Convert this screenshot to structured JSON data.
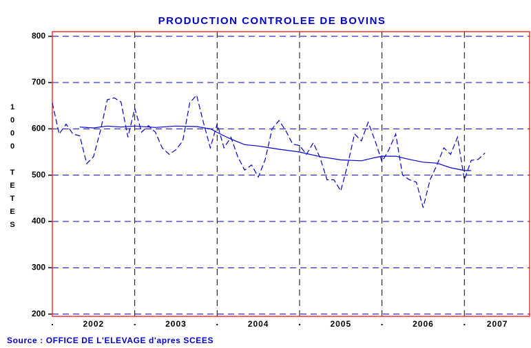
{
  "chart_data": {
    "type": "line",
    "title": "PRODUCTION CONTROLEE DE BOVINS",
    "y_label": "1000 TETES",
    "source": "Source : OFFICE DE L'ELEVAGE d'apres SCEES",
    "xlim": [
      2002,
      2007.8
    ],
    "xticks": [
      2002,
      2003,
      2004,
      2005,
      2006,
      2007
    ],
    "x_labels": [
      {
        "value": 2002.5,
        "label": "2002"
      },
      {
        "value": 2003.5,
        "label": "2003"
      },
      {
        "value": 2004.5,
        "label": "2004"
      },
      {
        "value": 2005.5,
        "label": "2005"
      },
      {
        "value": 2006.5,
        "label": "2006"
      },
      {
        "value": 2007.4,
        "label": "2007"
      }
    ],
    "ylim": [
      195,
      810
    ],
    "yticks": [
      200,
      300,
      400,
      500,
      600,
      700,
      800
    ],
    "grid": true,
    "series": [
      {
        "color": "#0000cc",
        "dashed": true,
        "x": [
          2002,
          2002.083,
          2002.167,
          2002.25,
          2002.333,
          2002.417,
          2002.5,
          2002.583,
          2002.667,
          2002.75,
          2002.833,
          2002.917,
          2003,
          2003.083,
          2003.167,
          2003.25,
          2003.333,
          2003.417,
          2003.5,
          2003.583,
          2003.667,
          2003.75,
          2003.833,
          2003.917,
          2004,
          2004.083,
          2004.167,
          2004.25,
          2004.333,
          2004.417,
          2004.5,
          2004.583,
          2004.667,
          2004.75,
          2004.833,
          2004.917,
          2005,
          2005.083,
          2005.167,
          2005.25,
          2005.333,
          2005.417,
          2005.5,
          2005.583,
          2005.667,
          2005.75,
          2005.833,
          2005.917,
          2006,
          2006.083,
          2006.167,
          2006.25,
          2006.333,
          2006.417,
          2006.5,
          2006.583,
          2006.667,
          2006.75,
          2006.833,
          2006.917,
          2007,
          2007.083,
          2007.167,
          2007.25
        ],
        "values": [
          656,
          589,
          610,
          589,
          585,
          525,
          540,
          596,
          663,
          667,
          658,
          582,
          644,
          593,
          607,
          593,
          559,
          545,
          555,
          574,
          656,
          673,
          614,
          559,
          611,
          559,
          582,
          540,
          511,
          522,
          496,
          534,
          600,
          618,
          596,
          567,
          564,
          545,
          570,
          537,
          490,
          490,
          466,
          522,
          589,
          574,
          614,
          574,
          529,
          555,
          589,
          500,
          490,
          485,
          430,
          490,
          522,
          559,
          545,
          582,
          490,
          532,
          534,
          548
        ]
      },
      {
        "color": "#0000cc",
        "dashed": false,
        "x": [
          2002.333,
          2002.5,
          2002.667,
          2002.833,
          2003,
          2003.25,
          2003.5,
          2003.75,
          2003.917,
          2004.083,
          2004.167,
          2004.333,
          2004.5,
          2004.75,
          2005,
          2005.25,
          2005.5,
          2005.75,
          2005.917,
          2006,
          2006.167,
          2006.333,
          2006.5,
          2006.667,
          2006.833,
          2007,
          2007.083
        ],
        "values": [
          604,
          602,
          606,
          604,
          606,
          603,
          606,
          605,
          600,
          585,
          578,
          566,
          563,
          556,
          550,
          540,
          533,
          531,
          538,
          541,
          541,
          534,
          528,
          526,
          516,
          510,
          510
        ]
      }
    ]
  }
}
